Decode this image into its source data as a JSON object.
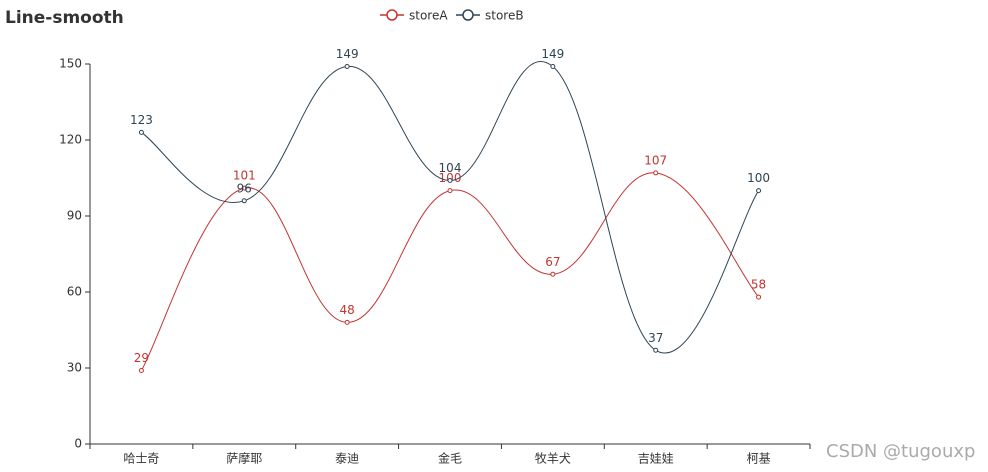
{
  "chart_data": {
    "type": "line",
    "title": "Line-smooth",
    "smooth": true,
    "categories": [
      "哈士奇",
      "萨摩耶",
      "泰迪",
      "金毛",
      "牧羊犬",
      "吉娃娃",
      "柯基"
    ],
    "series": [
      {
        "name": "storeA",
        "color": "#c23531",
        "values": [
          29,
          101,
          48,
          100,
          67,
          107,
          58
        ]
      },
      {
        "name": "storeB",
        "color": "#2f4554",
        "values": [
          123,
          96,
          149,
          104,
          149,
          37,
          100
        ]
      }
    ],
    "ylim": [
      0,
      150
    ],
    "yticks": [
      0,
      30,
      60,
      90,
      120,
      150
    ],
    "grid": false,
    "legend": "top",
    "watermark": "CSDN @tugouxp"
  }
}
